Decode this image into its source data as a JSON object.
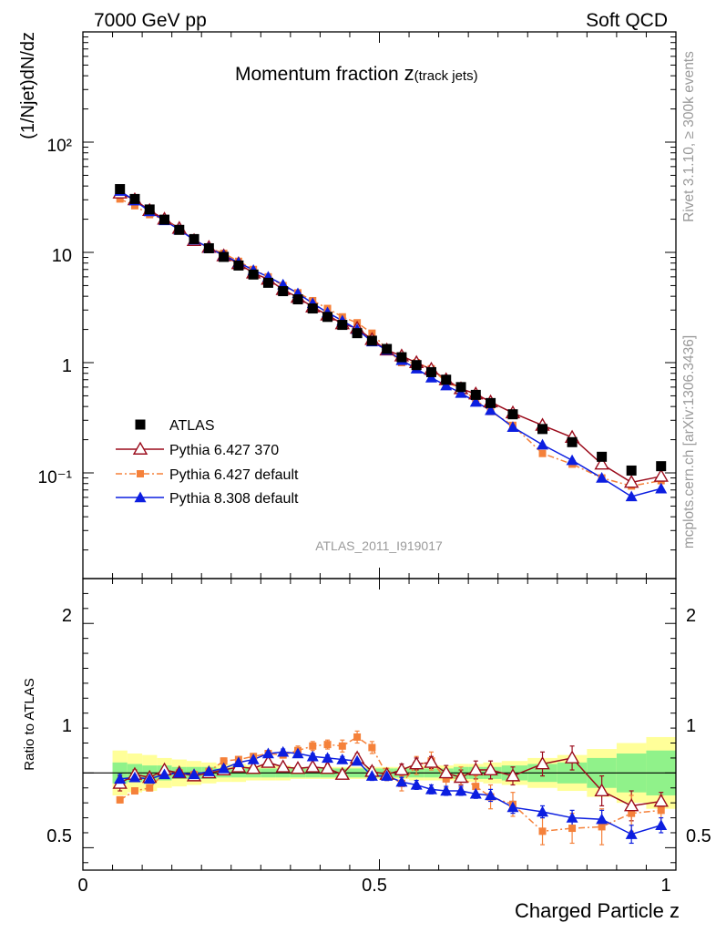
{
  "header": {
    "left": "7000 GeV pp",
    "right": "Soft QCD"
  },
  "side": {
    "rivet": "Rivet 3.1.10, ≥ 300k events",
    "mcplots": "mcplots.cern.ch [arXiv:1306.3436]"
  },
  "chart_data": {
    "type": "line",
    "title_main": "Momentum fraction ",
    "title_z": "z",
    "title_sub": "(track jets)",
    "analysis_id": "ATLAS_2011_I919017",
    "ylabel": "(1/Njet)dN/dz",
    "ratio_ylabel": "Ratio to ATLAS",
    "xlabel": "Charged Particle z",
    "xlim": [
      0,
      1
    ],
    "ylim": [
      0.011,
      1000
    ],
    "yscale": "log",
    "ratio_ylim": [
      0.35,
      2.3
    ],
    "x_ticks": [
      "0",
      "0.5",
      "1"
    ],
    "y_ticks": [
      "10⁻¹",
      "1",
      "10",
      "10²"
    ],
    "ratio_ticks": [
      "0.5",
      "1",
      "2"
    ],
    "legend_position": "mid-left",
    "colors": {
      "data": "#000000",
      "py6_370": "#9b0c1c",
      "py6_default": "#f5813a",
      "py8": "#0c1ee0",
      "band_inner": "#90f28a",
      "band_outer": "#ffff99"
    },
    "x": [
      0.0625,
      0.0875,
      0.1125,
      0.1375,
      0.1625,
      0.1875,
      0.2125,
      0.2375,
      0.2625,
      0.2875,
      0.3125,
      0.3375,
      0.3625,
      0.3875,
      0.4125,
      0.4375,
      0.4625,
      0.4875,
      0.5125,
      0.5375,
      0.5625,
      0.5875,
      0.6125,
      0.6375,
      0.6625,
      0.6875,
      0.725,
      0.775,
      0.825,
      0.875,
      0.925,
      0.975
    ],
    "series": [
      {
        "name": "ATLAS",
        "key": "data",
        "values": [
          37.5,
          30.5,
          24.5,
          19.8,
          16.0,
          13.2,
          10.9,
          9.1,
          7.6,
          6.3,
          5.3,
          4.45,
          3.75,
          3.1,
          2.6,
          2.2,
          1.85,
          1.58,
          1.33,
          1.12,
          0.95,
          0.82,
          0.7,
          0.6,
          0.51,
          0.43,
          0.34,
          0.25,
          0.19,
          0.14,
          0.105,
          0.115
        ]
      },
      {
        "name": "Pythia 6.427 370",
        "key": "py6_370",
        "values": [
          34.5,
          30.0,
          24.0,
          20.0,
          16.5,
          12.8,
          11.1,
          9.3,
          7.9,
          6.5,
          5.7,
          4.6,
          3.9,
          3.2,
          2.7,
          2.25,
          2.05,
          1.62,
          1.3,
          1.15,
          1.0,
          0.87,
          0.7,
          0.58,
          0.52,
          0.44,
          0.35,
          0.27,
          0.21,
          0.12,
          0.082,
          0.093
        ]
      },
      {
        "name": "Pythia 6.427 default",
        "key": "py6_default",
        "values": [
          30.5,
          26.5,
          22.0,
          20.0,
          16.0,
          13.0,
          11.0,
          9.8,
          8.3,
          7.0,
          6.0,
          5.0,
          4.3,
          3.65,
          3.1,
          2.6,
          2.3,
          1.85,
          1.32,
          1.0,
          1.0,
          0.88,
          0.67,
          0.58,
          0.46,
          0.36,
          0.27,
          0.15,
          0.12,
          0.09,
          0.076,
          0.085
        ]
      },
      {
        "name": "Pythia 8.308 default",
        "key": "py8",
        "values": [
          36.0,
          29.5,
          23.5,
          19.5,
          16.0,
          13.0,
          11.0,
          9.4,
          8.1,
          6.9,
          6.0,
          5.1,
          4.25,
          3.45,
          2.85,
          2.4,
          2.0,
          1.55,
          1.3,
          1.05,
          0.88,
          0.73,
          0.62,
          0.53,
          0.44,
          0.37,
          0.26,
          0.18,
          0.13,
          0.09,
          0.061,
          0.072
        ]
      }
    ],
    "ratio_series": [
      {
        "key": "py6_370",
        "values": [
          0.93,
          0.99,
          0.97,
          1.02,
          1.0,
          0.98,
          1.0,
          1.02,
          1.04,
          1.03,
          1.07,
          1.04,
          1.03,
          1.04,
          1.03,
          0.99,
          1.1,
          1.01,
          0.99,
          1.02,
          1.06,
          1.07,
          1.0,
          0.97,
          1.02,
          1.02,
          0.98,
          1.06,
          1.1,
          0.88,
          0.78,
          0.81
        ]
      },
      {
        "key": "py6_default",
        "values": [
          0.82,
          0.88,
          0.9,
          1.0,
          1.0,
          0.99,
          1.01,
          1.08,
          1.09,
          1.11,
          1.13,
          1.12,
          1.15,
          1.18,
          1.19,
          1.18,
          1.24,
          1.17,
          0.99,
          0.93,
          1.05,
          1.08,
          0.96,
          0.97,
          0.91,
          0.84,
          0.79,
          0.61,
          0.63,
          0.64,
          0.73,
          0.75
        ]
      },
      {
        "key": "py8",
        "values": [
          0.96,
          0.97,
          0.96,
          0.99,
          1.0,
          0.99,
          1.01,
          1.03,
          1.07,
          1.09,
          1.13,
          1.14,
          1.13,
          1.11,
          1.1,
          1.09,
          1.08,
          0.98,
          0.98,
          0.94,
          0.92,
          0.89,
          0.88,
          0.88,
          0.86,
          0.85,
          0.77,
          0.74,
          0.7,
          0.69,
          0.59,
          0.65
        ]
      }
    ],
    "ratio_errors": [
      {
        "key": "py6_370",
        "values": [
          0.05,
          0.03,
          0.02,
          0.02,
          0.02,
          0.02,
          0.02,
          0.02,
          0.02,
          0.02,
          0.02,
          0.02,
          0.02,
          0.02,
          0.03,
          0.03,
          0.03,
          0.03,
          0.04,
          0.04,
          0.04,
          0.04,
          0.05,
          0.05,
          0.06,
          0.06,
          0.06,
          0.08,
          0.08,
          0.1,
          0.1,
          0.06
        ]
      },
      {
        "key": "py6_default",
        "values": [
          0.02,
          0.02,
          0.02,
          0.02,
          0.02,
          0.02,
          0.02,
          0.02,
          0.02,
          0.02,
          0.02,
          0.02,
          0.03,
          0.03,
          0.03,
          0.04,
          0.04,
          0.04,
          0.04,
          0.05,
          0.06,
          0.06,
          0.06,
          0.07,
          0.07,
          0.08,
          0.08,
          0.09,
          0.1,
          0.12,
          0.12,
          0.1
        ]
      },
      {
        "key": "py8",
        "values": [
          0.03,
          0.02,
          0.02,
          0.02,
          0.02,
          0.02,
          0.02,
          0.02,
          0.02,
          0.02,
          0.02,
          0.02,
          0.02,
          0.02,
          0.02,
          0.02,
          0.02,
          0.03,
          0.03,
          0.03,
          0.03,
          0.03,
          0.03,
          0.03,
          0.03,
          0.04,
          0.04,
          0.04,
          0.05,
          0.06,
          0.06,
          0.05
        ]
      }
    ],
    "data_uncertainty": {
      "inner": [
        0.07,
        0.06,
        0.05,
        0.05,
        0.04,
        0.04,
        0.04,
        0.03,
        0.03,
        0.03,
        0.03,
        0.03,
        0.03,
        0.03,
        0.03,
        0.03,
        0.03,
        0.03,
        0.03,
        0.03,
        0.03,
        0.03,
        0.03,
        0.04,
        0.04,
        0.04,
        0.05,
        0.06,
        0.07,
        0.1,
        0.13,
        0.15
      ],
      "outer": [
        0.15,
        0.13,
        0.12,
        0.1,
        0.09,
        0.08,
        0.07,
        0.06,
        0.06,
        0.05,
        0.05,
        0.05,
        0.04,
        0.04,
        0.04,
        0.04,
        0.04,
        0.04,
        0.04,
        0.04,
        0.05,
        0.05,
        0.05,
        0.06,
        0.06,
        0.07,
        0.08,
        0.1,
        0.12,
        0.16,
        0.2,
        0.24
      ]
    }
  }
}
